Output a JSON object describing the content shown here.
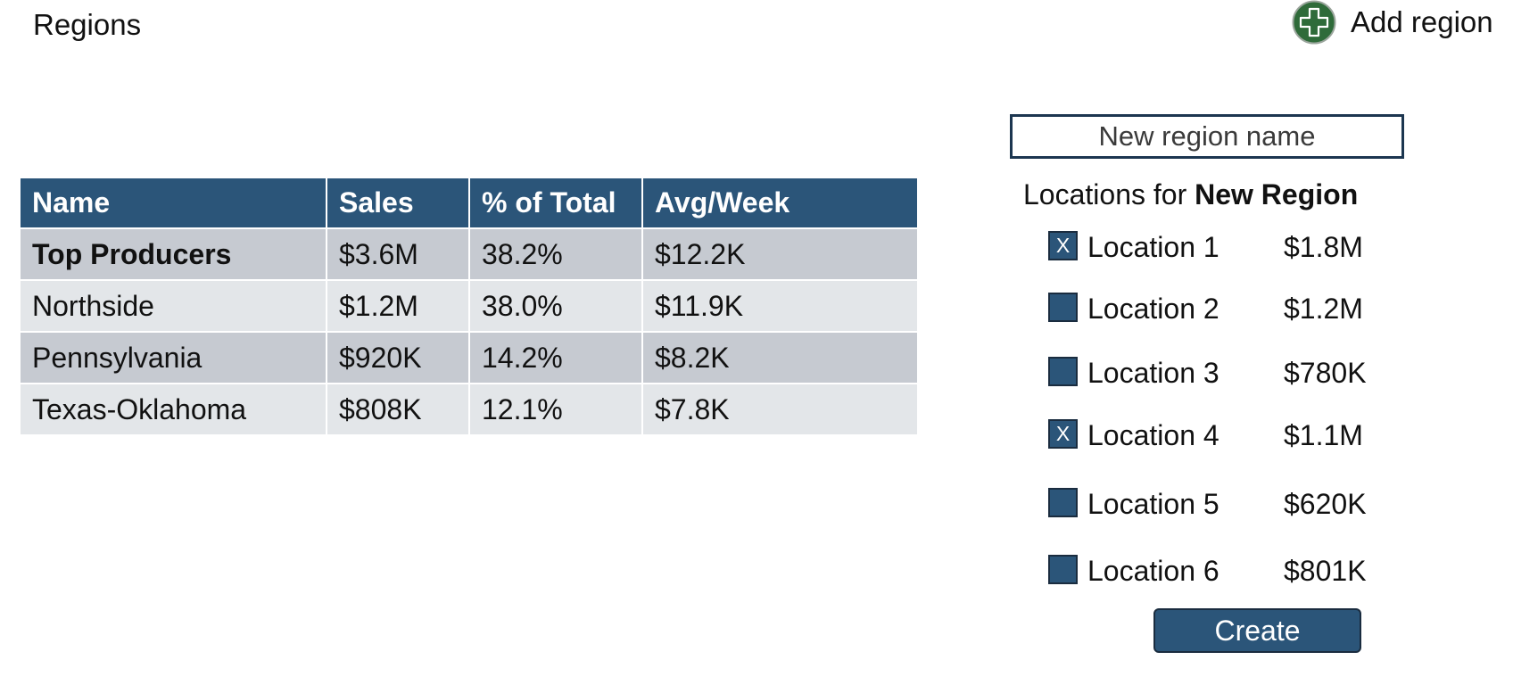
{
  "header": {
    "title": "Regions",
    "add_region_label": "Add region",
    "add_icon": "plus-circle-icon",
    "add_icon_color": "#2f6b3a"
  },
  "table": {
    "columns": [
      "Name",
      "Sales",
      "% of Total",
      "Avg/Week"
    ],
    "rows": [
      {
        "name": "Top Producers",
        "sales": "$3.6M",
        "pct": "38.2%",
        "avg": "$12.2K",
        "bold": true
      },
      {
        "name": "Northside",
        "sales": "$1.2M",
        "pct": "38.0%",
        "avg": "$11.9K",
        "bold": false
      },
      {
        "name": "Pennsylvania",
        "sales": "$920K",
        "pct": "14.2%",
        "avg": "$8.2K",
        "bold": false
      },
      {
        "name": "Texas-Oklahoma",
        "sales": "$808K",
        "pct": "12.1%",
        "avg": "$7.8K",
        "bold": false
      }
    ],
    "header_color": "#2b5579"
  },
  "new_region": {
    "placeholder": "New region name",
    "locations_prefix": "Locations for",
    "region_name": "New Region",
    "locations": [
      {
        "name": "Location 1",
        "amount": "$1.8M",
        "checked": true,
        "mark": "X"
      },
      {
        "name": "Location 2",
        "amount": "$1.2M",
        "checked": false,
        "mark": ""
      },
      {
        "name": "Location 3",
        "amount": "$780K",
        "checked": false,
        "mark": ""
      },
      {
        "name": "Location 4",
        "amount": "$1.1M",
        "checked": true,
        "mark": "X"
      },
      {
        "name": "Location 5",
        "amount": "$620K",
        "checked": false,
        "mark": ""
      },
      {
        "name": "Location 6",
        "amount": "$801K",
        "checked": false,
        "mark": ""
      }
    ],
    "create_label": "Create"
  }
}
